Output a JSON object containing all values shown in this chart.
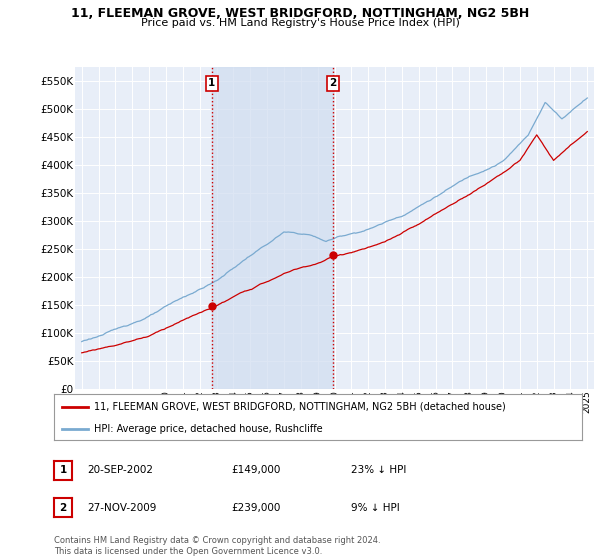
{
  "title": "11, FLEEMAN GROVE, WEST BRIDGFORD, NOTTINGHAM, NG2 5BH",
  "subtitle": "Price paid vs. HM Land Registry's House Price Index (HPI)",
  "legend_label_red": "11, FLEEMAN GROVE, WEST BRIDGFORD, NOTTINGHAM, NG2 5BH (detached house)",
  "legend_label_blue": "HPI: Average price, detached house, Rushcliffe",
  "transaction1_date": "20-SEP-2002",
  "transaction1_price": "£149,000",
  "transaction1_hpi": "23% ↓ HPI",
  "transaction2_date": "27-NOV-2009",
  "transaction2_price": "£239,000",
  "transaction2_hpi": "9% ↓ HPI",
  "footnote": "Contains HM Land Registry data © Crown copyright and database right 2024.\nThis data is licensed under the Open Government Licence v3.0.",
  "ylim": [
    0,
    575000
  ],
  "yticks": [
    0,
    50000,
    100000,
    150000,
    200000,
    250000,
    300000,
    350000,
    400000,
    450000,
    500000,
    550000
  ],
  "plot_bg_color": "#e8eef8",
  "shade_color": "#d0ddf0",
  "red_color": "#cc0000",
  "blue_color": "#7aaad0",
  "marker1_x": 2002.72,
  "marker1_y": 149000,
  "marker2_x": 2009.9,
  "marker2_y": 239000,
  "vline1_x": 2002.72,
  "vline2_x": 2009.9,
  "xlim_left": 1994.6,
  "xlim_right": 2025.4
}
